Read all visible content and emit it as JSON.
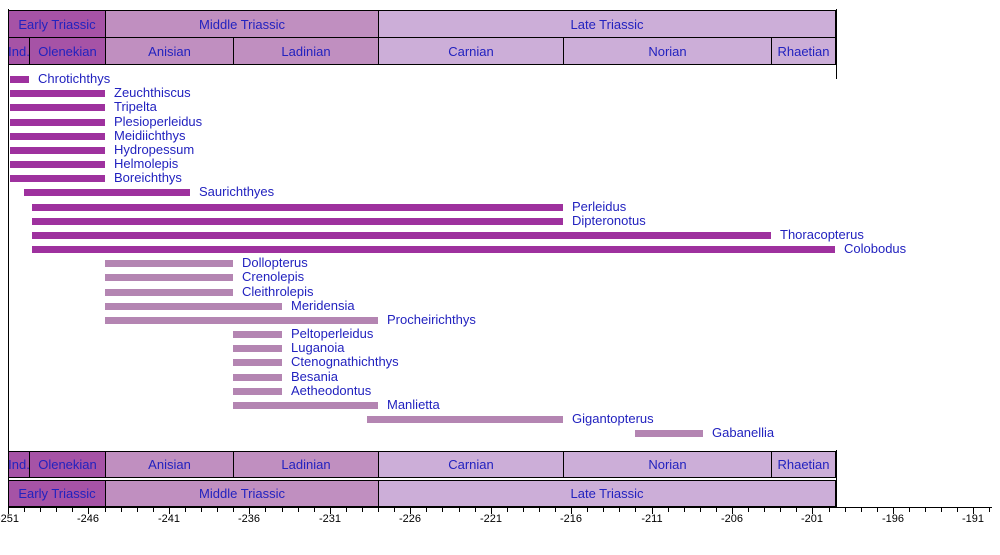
{
  "chart_data": {
    "type": "bar",
    "variant": "stratigraphic-range-chart",
    "title": "",
    "xlabel": "",
    "ylabel": "",
    "axis": {
      "min": -251,
      "max": -190,
      "minor_tick_step": 1,
      "major_tick_step": 5,
      "tick_labels": [
        "-251",
        "-246",
        "-241",
        "-236",
        "-231",
        "-226",
        "-221",
        "-216",
        "-211",
        "-206",
        "-201",
        "-196",
        "-191"
      ],
      "grid": false,
      "legend": "none"
    },
    "epochs": [
      {
        "label": "Early Triassic",
        "start": -251,
        "end": -245,
        "shade": "dark"
      },
      {
        "label": "Middle Triassic",
        "start": -245,
        "end": -228,
        "shade": "mid"
      },
      {
        "label": "Late Triassic",
        "start": -228,
        "end": -199.6,
        "shade": "light"
      }
    ],
    "stages": [
      {
        "label": "Ind.",
        "start": -251,
        "end": -249.7,
        "shade": "dark"
      },
      {
        "label": "Olenekian",
        "start": -249.7,
        "end": -245,
        "shade": "dark"
      },
      {
        "label": "Anisian",
        "start": -245,
        "end": -237,
        "shade": "mid"
      },
      {
        "label": "Ladinian",
        "start": -237,
        "end": -228,
        "shade": "mid"
      },
      {
        "label": "Carnian",
        "start": -228,
        "end": -216.5,
        "shade": "light"
      },
      {
        "label": "Norian",
        "start": -216.5,
        "end": -203.6,
        "shade": "light"
      },
      {
        "label": "Rhaetian",
        "start": -203.6,
        "end": -199.6,
        "shade": "light"
      }
    ],
    "taxa": [
      {
        "name": "Chrotichthys",
        "start": -251,
        "end": -249.7,
        "shade": "dark"
      },
      {
        "name": "Zeuchthiscus",
        "start": -251,
        "end": -245,
        "shade": "dark"
      },
      {
        "name": "Tripelta",
        "start": -251,
        "end": -245,
        "shade": "dark"
      },
      {
        "name": "Plesioperleidus",
        "start": -251,
        "end": -245,
        "shade": "dark"
      },
      {
        "name": "Meidiichthys",
        "start": -251,
        "end": -245,
        "shade": "dark"
      },
      {
        "name": "Hydropessum",
        "start": -251,
        "end": -245,
        "shade": "dark"
      },
      {
        "name": "Helmolepis",
        "start": -251,
        "end": -245,
        "shade": "dark"
      },
      {
        "name": "Boreichthys",
        "start": -251,
        "end": -245,
        "shade": "dark"
      },
      {
        "name": "Saurichthyes",
        "start": -250,
        "end": -239.7,
        "shade": "dark"
      },
      {
        "name": "Perleidus",
        "start": -249.5,
        "end": -216.5,
        "shade": "dark"
      },
      {
        "name": "Dipteronotus",
        "start": -249.5,
        "end": -216.5,
        "shade": "dark"
      },
      {
        "name": "Thoracopterus",
        "start": -249.5,
        "end": -203.6,
        "shade": "dark"
      },
      {
        "name": "Colobodus",
        "start": -249.5,
        "end": -199.6,
        "shade": "dark"
      },
      {
        "name": "Dollopterus",
        "start": -245,
        "end": -237,
        "shade": "light"
      },
      {
        "name": "Crenolepis",
        "start": -245,
        "end": -237,
        "shade": "light"
      },
      {
        "name": "Cleithrolepis",
        "start": -245,
        "end": -237,
        "shade": "light"
      },
      {
        "name": "Meridensia",
        "start": -245,
        "end": -234,
        "shade": "light"
      },
      {
        "name": "Procheirichthys",
        "start": -245,
        "end": -228,
        "shade": "light"
      },
      {
        "name": "Peltoperleidus",
        "start": -237,
        "end": -234,
        "shade": "light"
      },
      {
        "name": "Luganoia",
        "start": -237,
        "end": -234,
        "shade": "light"
      },
      {
        "name": "Ctenognathichthys",
        "start": -237,
        "end": -234,
        "shade": "light"
      },
      {
        "name": "Besania",
        "start": -237,
        "end": -234,
        "shade": "light"
      },
      {
        "name": "Aetheodontus",
        "start": -237,
        "end": -234,
        "shade": "light"
      },
      {
        "name": "Manlietta",
        "start": -237,
        "end": -228,
        "shade": "light"
      },
      {
        "name": "Gigantopterus",
        "start": -228.7,
        "end": -216.5,
        "shade": "light"
      },
      {
        "name": "Gabanellia",
        "start": -212,
        "end": -207.8,
        "shade": "light"
      }
    ],
    "colors": {
      "dark_cell": "#a653a6",
      "mid_cell": "#c08fc0",
      "light_cell": "#ccaed8",
      "bar_dark": "#9e319e",
      "bar_light": "#b485b2",
      "label_text": "#2222bf",
      "axis_text": "#000000"
    }
  }
}
